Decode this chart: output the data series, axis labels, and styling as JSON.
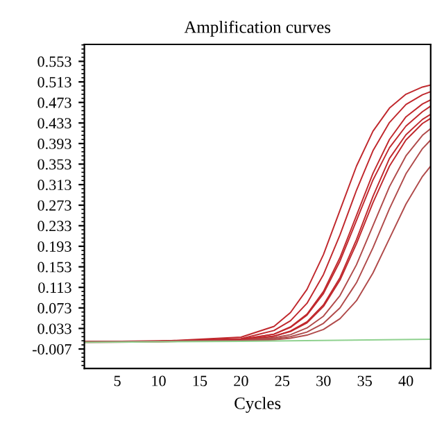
{
  "chart_data": {
    "type": "line",
    "title": "Amplification curves",
    "xlabel": "Cycles",
    "x": [
      1,
      10,
      20,
      24,
      26,
      28,
      30,
      32,
      34,
      36,
      38,
      40,
      42,
      43
    ],
    "series": [
      {
        "color": "#c0282d",
        "values": [
          0.008,
          0.008,
          0.016,
          0.037,
          0.064,
          0.109,
          0.177,
          0.263,
          0.349,
          0.417,
          0.462,
          0.489,
          0.503,
          0.507
        ]
      },
      {
        "color": "#c0282d",
        "values": [
          0.008,
          0.008,
          0.013,
          0.029,
          0.048,
          0.082,
          0.138,
          0.215,
          0.302,
          0.379,
          0.434,
          0.469,
          0.488,
          0.494
        ]
      },
      {
        "color": "#c0282d",
        "values": [
          0.008,
          0.008,
          0.012,
          0.022,
          0.036,
          0.061,
          0.105,
          0.171,
          0.253,
          0.335,
          0.401,
          0.445,
          0.47,
          0.478
        ]
      },
      {
        "color": "#c0282d",
        "values": [
          0.006,
          0.007,
          0.011,
          0.022,
          0.035,
          0.059,
          0.101,
          0.164,
          0.243,
          0.322,
          0.385,
          0.427,
          0.455,
          0.466
        ]
      },
      {
        "color": "#c0282d",
        "values": [
          0.007,
          0.009,
          0.01,
          0.018,
          0.028,
          0.046,
          0.079,
          0.132,
          0.206,
          0.29,
          0.364,
          0.41,
          0.44,
          0.45
        ]
      },
      {
        "color": "#c0282d",
        "values": [
          0.008,
          0.008,
          0.01,
          0.018,
          0.027,
          0.044,
          0.076,
          0.127,
          0.198,
          0.278,
          0.349,
          0.4,
          0.432,
          0.442
        ]
      },
      {
        "color": "#b04a4a",
        "values": [
          0.008,
          0.008,
          0.01,
          0.015,
          0.021,
          0.034,
          0.057,
          0.097,
          0.157,
          0.233,
          0.309,
          0.369,
          0.409,
          0.422
        ]
      },
      {
        "color": "#b04a4a",
        "values": [
          0.008,
          0.008,
          0.009,
          0.013,
          0.017,
          0.026,
          0.043,
          0.073,
          0.122,
          0.19,
          0.266,
          0.334,
          0.383,
          0.4
        ]
      },
      {
        "color": "#b04a4a",
        "values": [
          0.008,
          0.008,
          0.009,
          0.011,
          0.014,
          0.02,
          0.031,
          0.052,
          0.087,
          0.141,
          0.208,
          0.275,
          0.329,
          0.349
        ]
      },
      {
        "color": "#8fd18f",
        "x": [
          1,
          20,
          43
        ],
        "values": [
          0.006,
          0.008,
          0.012
        ]
      }
    ],
    "xlim": [
      1,
      43
    ],
    "xticks": [
      5,
      10,
      15,
      20,
      25,
      30,
      35,
      40
    ],
    "ylim": [
      -0.045,
      0.586
    ],
    "yticks": [
      -0.007,
      0.033,
      0.073,
      0.113,
      0.153,
      0.193,
      0.233,
      0.273,
      0.313,
      0.353,
      0.393,
      0.433,
      0.473,
      0.513,
      0.553
    ],
    "grid": false,
    "legend": false,
    "marker": "none",
    "line_style": "solid"
  }
}
